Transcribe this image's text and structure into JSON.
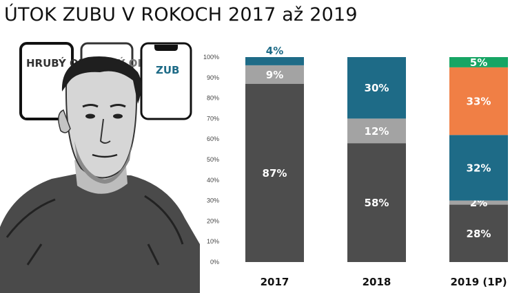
{
  "title": "ÚTOK ZUBU V ROKOCH 2017 až 2019",
  "illustration": {
    "phone_labels": [
      "HRUBÝ OKRAJ",
      "TENKÝ OKRAJ",
      "ZUB"
    ]
  },
  "chart_data": {
    "type": "bar",
    "stacked": true,
    "categories": [
      "2017",
      "2018",
      "2019 (1P)"
    ],
    "ylim": [
      0,
      100
    ],
    "yticks": [
      "0%",
      "10%",
      "20%",
      "30%",
      "40%",
      "50%",
      "60%",
      "70%",
      "80%",
      "90%",
      "100%"
    ],
    "grid": false,
    "legend": "none",
    "series": [
      {
        "color": "#4d4d4d",
        "label_color": "#ffffff",
        "values": [
          87,
          58,
          28
        ],
        "labels": [
          "87%",
          "58%",
          "28%"
        ]
      },
      {
        "color": "#a3a3a3",
        "label_color": "#ffffff",
        "values": [
          9,
          12,
          2
        ],
        "labels": [
          "9%",
          "12%",
          "2%"
        ]
      },
      {
        "color": "#1e6b87",
        "label_color": "#ffffff",
        "values": [
          4,
          30,
          32
        ],
        "labels": [
          "4%",
          "30%",
          "32%"
        ]
      },
      {
        "color": "#f07f45",
        "label_color": "#ffffff",
        "values": [
          0,
          0,
          33
        ],
        "labels": [
          "",
          "",
          "33%"
        ]
      },
      {
        "color": "#17a564",
        "label_color": "#ffffff",
        "values": [
          0,
          0,
          5
        ],
        "labels": [
          "",
          "",
          "5%"
        ]
      }
    ],
    "outside_labels": [
      {
        "category": 0,
        "series": 2,
        "text": "4%",
        "color": "#1e6b87"
      }
    ]
  }
}
